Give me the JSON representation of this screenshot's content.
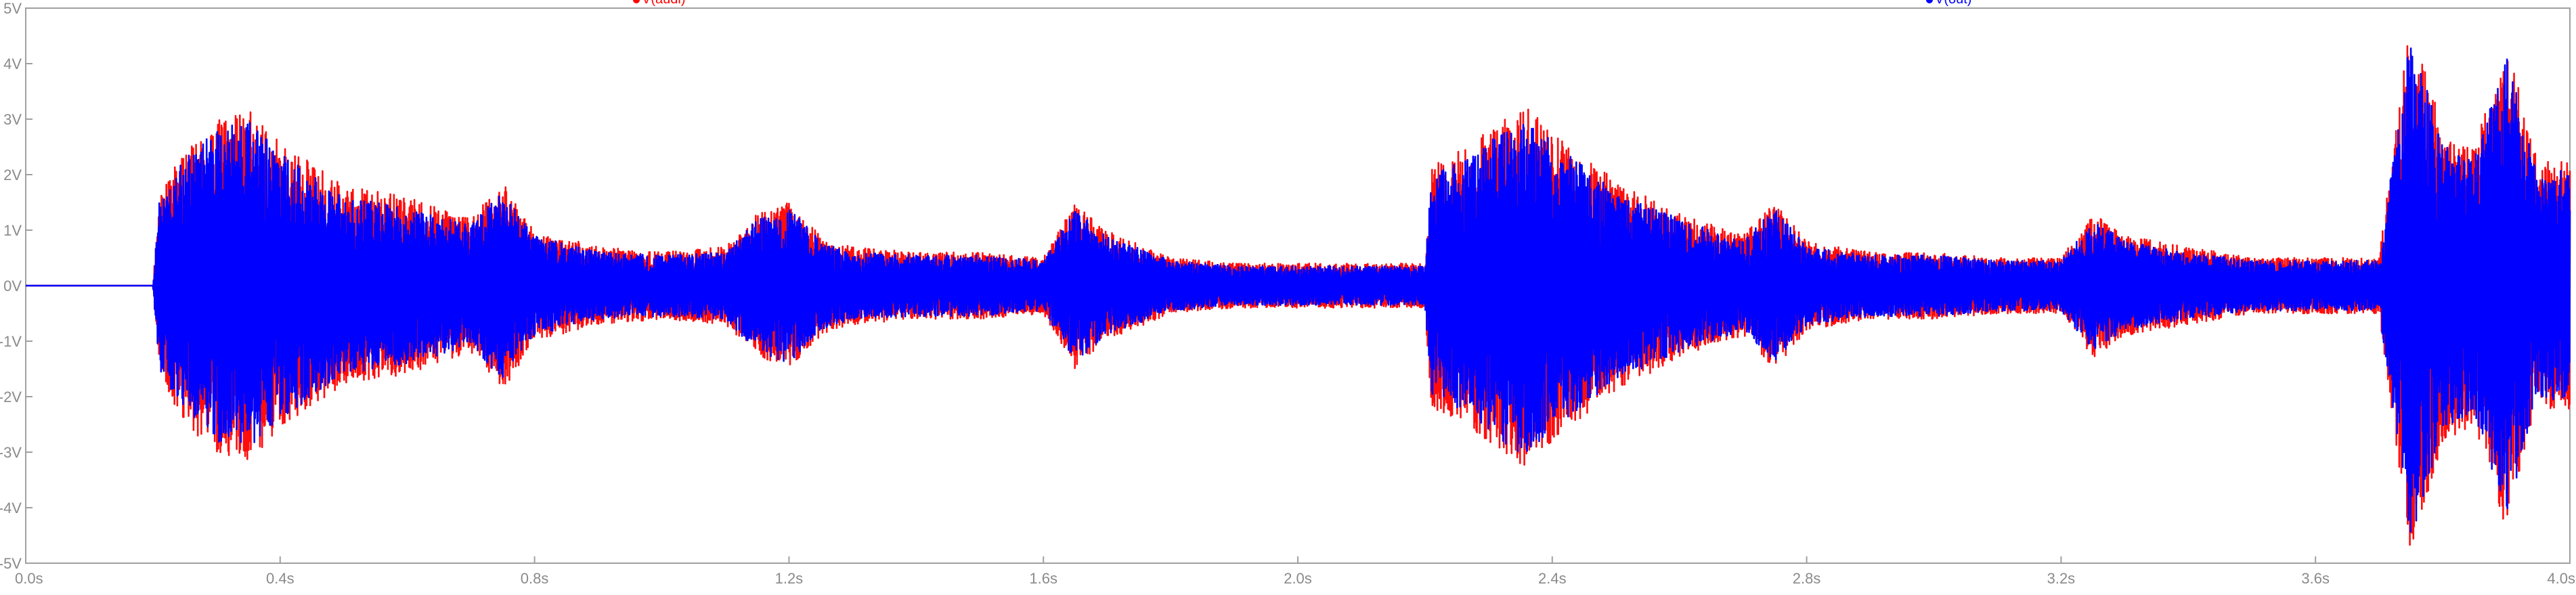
{
  "chart_data": {
    "type": "line",
    "title": "",
    "xlabel": "",
    "ylabel": "",
    "xlim": [
      0.0,
      4.0
    ],
    "ylim": [
      -5,
      5
    ],
    "x_ticks": [
      "0.0s",
      "0.4s",
      "0.8s",
      "1.2s",
      "1.6s",
      "2.0s",
      "2.4s",
      "2.8s",
      "3.2s",
      "3.6s",
      "4.0s"
    ],
    "x_tick_values": [
      0.0,
      0.4,
      0.8,
      1.2,
      1.6,
      2.0,
      2.4,
      2.8,
      3.2,
      3.6,
      4.0
    ],
    "y_ticks": [
      "5V",
      "4V",
      "3V",
      "2V",
      "1V",
      "0V",
      "-1V",
      "-2V",
      "-3V",
      "-4V",
      "-5V"
    ],
    "y_tick_values": [
      5,
      4,
      3,
      2,
      1,
      0,
      -1,
      -2,
      -3,
      -4,
      -5
    ],
    "grid": false,
    "legend_placement": "top",
    "series": [
      {
        "name": "V(audi)",
        "color": "#ff0000",
        "envelope_x": [
          0.0,
          0.2,
          0.21,
          0.25,
          0.3,
          0.35,
          0.4,
          0.5,
          0.6,
          0.7,
          0.75,
          0.8,
          0.9,
          1.0,
          1.1,
          1.15,
          1.2,
          1.25,
          1.3,
          1.4,
          1.5,
          1.6,
          1.65,
          1.7,
          1.8,
          1.9,
          2.0,
          2.1,
          2.2,
          2.21,
          2.25,
          2.3,
          2.35,
          2.4,
          2.5,
          2.6,
          2.7,
          2.75,
          2.8,
          2.9,
          3.0,
          3.1,
          3.2,
          3.25,
          3.3,
          3.4,
          3.5,
          3.6,
          3.65,
          3.7,
          3.75,
          3.8,
          3.85,
          3.9,
          3.95,
          4.0
        ],
        "envelope_amplitude": [
          0.0,
          0.0,
          1.6,
          2.5,
          3.0,
          3.2,
          2.6,
          1.8,
          1.6,
          1.2,
          1.9,
          1.0,
          0.7,
          0.6,
          0.7,
          1.3,
          1.5,
          0.9,
          0.7,
          0.6,
          0.6,
          0.5,
          1.5,
          1.0,
          0.5,
          0.4,
          0.4,
          0.4,
          0.4,
          2.2,
          2.4,
          2.8,
          3.3,
          2.8,
          1.9,
          1.3,
          0.9,
          1.5,
          0.8,
          0.6,
          0.6,
          0.5,
          0.5,
          1.3,
          0.9,
          0.7,
          0.5,
          0.5,
          0.5,
          0.5,
          4.9,
          2.8,
          2.5,
          4.4,
          2.2,
          2.3
        ],
        "line_width": 2.6,
        "noise_seed": 17
      },
      {
        "name": "V(out)",
        "color": "#0000ff",
        "envelope_x": [
          0.0,
          0.2,
          0.21,
          0.25,
          0.3,
          0.35,
          0.4,
          0.5,
          0.6,
          0.7,
          0.75,
          0.8,
          0.9,
          1.0,
          1.1,
          1.15,
          1.2,
          1.25,
          1.3,
          1.4,
          1.5,
          1.6,
          1.65,
          1.7,
          1.8,
          1.9,
          2.0,
          2.1,
          2.2,
          2.21,
          2.25,
          2.3,
          2.35,
          2.4,
          2.5,
          2.6,
          2.7,
          2.75,
          2.8,
          2.9,
          3.0,
          3.1,
          3.2,
          3.25,
          3.3,
          3.4,
          3.5,
          3.6,
          3.65,
          3.7,
          3.75,
          3.8,
          3.85,
          3.9,
          3.95,
          4.0
        ],
        "envelope_amplitude": [
          0.0,
          0.0,
          1.5,
          2.3,
          2.8,
          3.0,
          2.4,
          1.6,
          1.4,
          1.1,
          1.7,
          0.9,
          0.6,
          0.55,
          0.6,
          1.2,
          1.4,
          0.8,
          0.6,
          0.55,
          0.55,
          0.45,
          1.4,
          0.9,
          0.45,
          0.35,
          0.35,
          0.35,
          0.35,
          2.0,
          2.2,
          2.6,
          3.1,
          2.6,
          1.7,
          1.2,
          0.8,
          1.4,
          0.7,
          0.55,
          0.55,
          0.45,
          0.45,
          1.2,
          0.8,
          0.6,
          0.45,
          0.45,
          0.45,
          0.45,
          4.6,
          2.6,
          2.3,
          4.2,
          2.0,
          2.1
        ],
        "line_width": 2.6,
        "noise_seed": 42
      }
    ]
  }
}
